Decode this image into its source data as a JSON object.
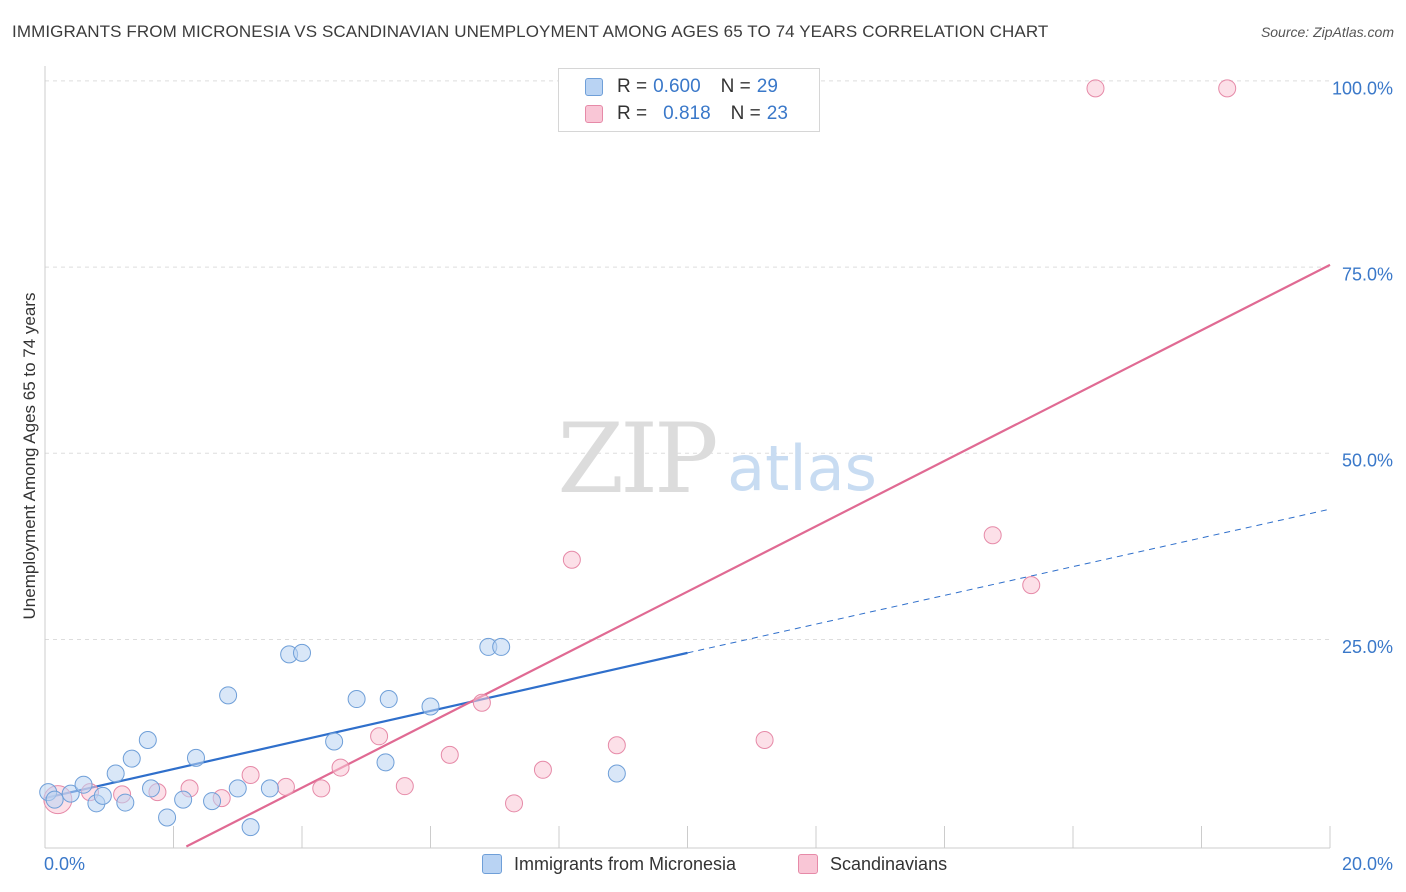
{
  "header": {
    "title": "IMMIGRANTS FROM MICRONESIA VS SCANDINAVIAN UNEMPLOYMENT AMONG AGES 65 TO 74 YEARS CORRELATION CHART",
    "source": "Source: ZipAtlas.com"
  },
  "watermark": {
    "zip": "ZIP",
    "atlas": "atlas"
  },
  "legend": {
    "r_label": "R =",
    "n_label": "N =",
    "series": [
      {
        "name": "Immigrants from Micronesia",
        "r": "0.600",
        "n": "29"
      },
      {
        "name": "Scandinavians",
        "r": "0.818",
        "n": "23"
      }
    ]
  },
  "colors": {
    "blue_fill": "#b9d3f3",
    "blue_stroke": "#6f9fd8",
    "blue_line": "#2f6fcb",
    "pink_fill": "#f9c6d6",
    "pink_stroke": "#e68aa8",
    "pink_line": "#e06a93",
    "tick_text": "#3a78c9",
    "grid": "#dddddd"
  },
  "chart_data": {
    "type": "scatter",
    "title": "IMMIGRANTS FROM MICRONESIA VS SCANDINAVIAN UNEMPLOYMENT AMONG AGES 65 TO 74 YEARS CORRELATION CHART",
    "xlabel": "",
    "ylabel": "Unemployment Among Ages 65 to 74 years",
    "xlim": [
      0,
      20
    ],
    "ylim": [
      -2,
      103
    ],
    "x_tick_labels": [
      {
        "value": 0,
        "label": "0.0%"
      },
      {
        "value": 20,
        "label": "20.0%"
      }
    ],
    "y_tick_labels": [
      {
        "value": 100,
        "label": "100.0%"
      },
      {
        "value": 75,
        "label": "75.0%"
      },
      {
        "value": 50,
        "label": "50.0%"
      },
      {
        "value": 25,
        "label": "25.0%"
      }
    ],
    "y_gridlines": [
      101,
      76,
      51,
      26
    ],
    "x_minor_ticks": [
      2,
      4,
      6,
      8,
      10,
      12,
      14,
      16,
      18,
      20
    ],
    "series": [
      {
        "name": "Immigrants from Micronesia",
        "r": 0.6,
        "n": 29,
        "points": [
          [
            0.05,
            5.5
          ],
          [
            0.4,
            5.3
          ],
          [
            0.6,
            6.5
          ],
          [
            0.8,
            4.0
          ],
          [
            0.9,
            5.0
          ],
          [
            1.1,
            8.0
          ],
          [
            1.25,
            4.1
          ],
          [
            1.35,
            10.0
          ],
          [
            1.6,
            12.5
          ],
          [
            1.65,
            6.0
          ],
          [
            1.9,
            2.1
          ],
          [
            2.15,
            4.5
          ],
          [
            2.35,
            10.1
          ],
          [
            2.6,
            4.3
          ],
          [
            2.85,
            18.5
          ],
          [
            3.0,
            6.0
          ],
          [
            3.2,
            0.8
          ],
          [
            3.5,
            6.0
          ],
          [
            3.8,
            24.0
          ],
          [
            4.0,
            24.2
          ],
          [
            4.5,
            12.3
          ],
          [
            4.85,
            18.0
          ],
          [
            5.3,
            9.5
          ],
          [
            5.35,
            18.0
          ],
          [
            6.0,
            17.0
          ],
          [
            6.9,
            25.0
          ],
          [
            7.1,
            25.0
          ],
          [
            8.9,
            8.0
          ],
          [
            0.15,
            4.5
          ]
        ],
        "trend": {
          "x": [
            0,
            10
          ],
          "y": [
            4.7,
            24.2
          ]
        },
        "trend_extension": {
          "x": [
            10,
            20
          ],
          "y": [
            24.2,
            43.5
          ]
        }
      },
      {
        "name": "Scandinavians",
        "r": 0.818,
        "n": 23,
        "points": [
          [
            0.2,
            4.5
          ],
          [
            0.7,
            5.5
          ],
          [
            1.2,
            5.2
          ],
          [
            1.75,
            5.5
          ],
          [
            2.25,
            6.0
          ],
          [
            2.75,
            4.7
          ],
          [
            3.2,
            7.8
          ],
          [
            3.75,
            6.2
          ],
          [
            4.3,
            6.0
          ],
          [
            4.6,
            8.8
          ],
          [
            5.2,
            13.0
          ],
          [
            5.6,
            6.3
          ],
          [
            6.3,
            10.5
          ],
          [
            6.8,
            17.5
          ],
          [
            7.3,
            4.0
          ],
          [
            7.75,
            8.5
          ],
          [
            8.2,
            36.7
          ],
          [
            8.9,
            11.8
          ],
          [
            11.2,
            12.5
          ],
          [
            14.75,
            40.0
          ],
          [
            15.35,
            33.3
          ],
          [
            16.35,
            100.0
          ],
          [
            18.4,
            100.0
          ]
        ],
        "trend": {
          "x": [
            2.2,
            20
          ],
          "y": [
            -1.8,
            76.3
          ]
        }
      }
    ]
  }
}
